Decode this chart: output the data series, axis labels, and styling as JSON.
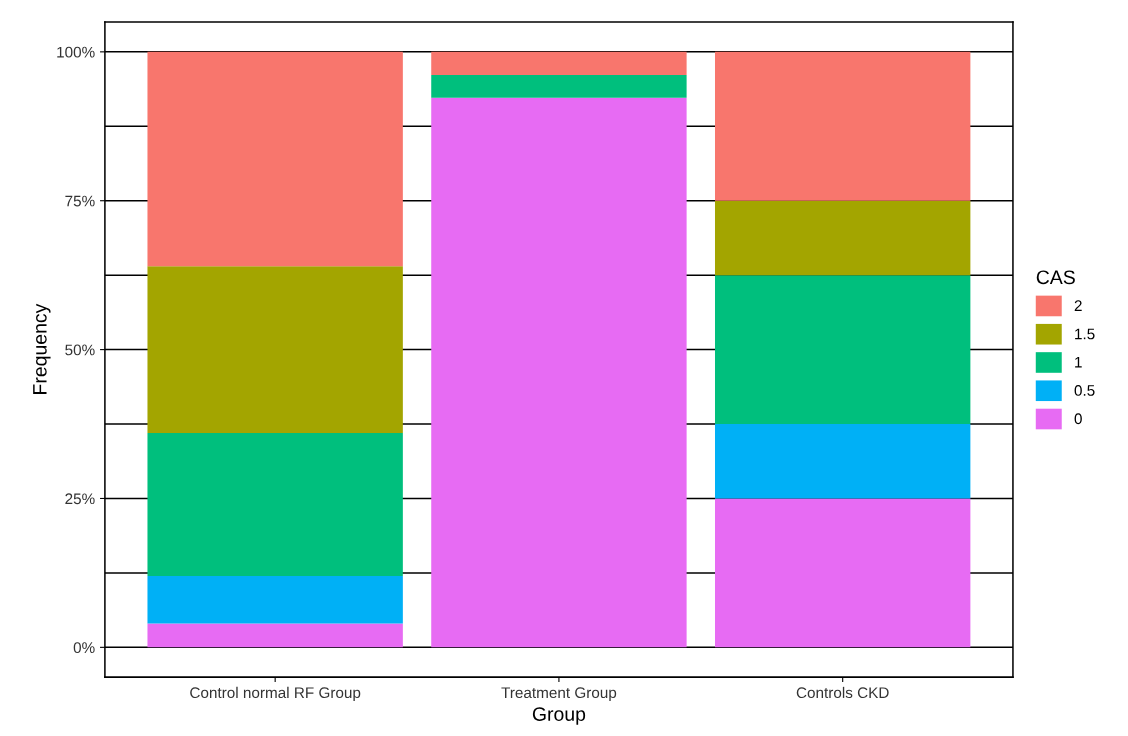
{
  "chart_data": {
    "type": "bar",
    "stacked": true,
    "xlabel": "Group",
    "ylabel": "Frequency",
    "legend_title": "CAS",
    "legend": "right",
    "grid": "y",
    "categories": [
      "Control normal RF Group",
      "Treatment Group",
      "Controls CKD"
    ],
    "series": [
      {
        "name": "0",
        "color": "#e76bf3",
        "values": [
          4,
          92.3,
          25
        ]
      },
      {
        "name": "0.5",
        "color": "#00b0f6",
        "values": [
          8,
          0,
          12.5
        ]
      },
      {
        "name": "1",
        "color": "#00bf7d",
        "values": [
          24,
          3.8,
          25
        ]
      },
      {
        "name": "1.5",
        "color": "#a3a500",
        "values": [
          28,
          0,
          12.5
        ]
      },
      {
        "name": "2",
        "color": "#f8766d",
        "values": [
          36,
          3.9,
          25
        ]
      }
    ],
    "ylim": [
      -5,
      105
    ],
    "yticks": [
      {
        "value": 0,
        "label": "0%"
      },
      {
        "value": 12.5,
        "label": null
      },
      {
        "value": 25,
        "label": "25%"
      },
      {
        "value": 37.5,
        "label": null
      },
      {
        "value": 50,
        "label": "50%"
      },
      {
        "value": 62.5,
        "label": null
      },
      {
        "value": 75,
        "label": "75%"
      },
      {
        "value": 87.5,
        "label": null
      },
      {
        "value": 100,
        "label": "100%"
      }
    ]
  }
}
